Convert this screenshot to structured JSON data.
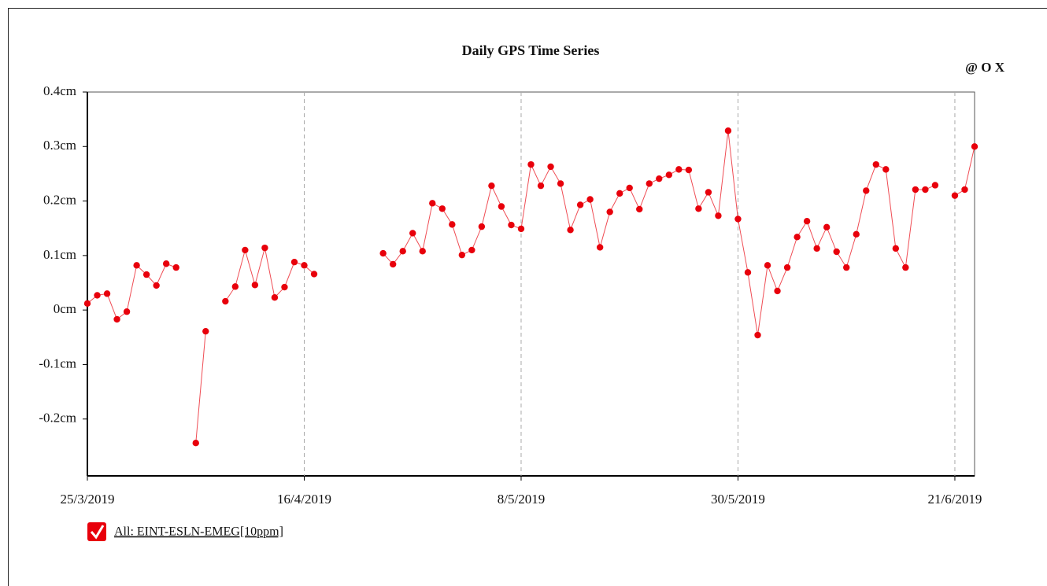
{
  "chart_data": {
    "type": "line",
    "title": "Daily GPS Time Series",
    "x": [
      "2019-03-25",
      "2019-03-26",
      "2019-03-27",
      "2019-03-28",
      "2019-03-29",
      "2019-03-30",
      "2019-03-31",
      "2019-04-01",
      "2019-04-02",
      "2019-04-03",
      "2019-04-04",
      "2019-04-05",
      "2019-04-06",
      "2019-04-07",
      "2019-04-08",
      "2019-04-09",
      "2019-04-10",
      "2019-04-11",
      "2019-04-12",
      "2019-04-13",
      "2019-04-14",
      "2019-04-15",
      "2019-04-16",
      "2019-04-17",
      "2019-04-18",
      "2019-04-24",
      "2019-04-25",
      "2019-04-26",
      "2019-04-27",
      "2019-04-28",
      "2019-04-29",
      "2019-04-30",
      "2019-05-01",
      "2019-05-02",
      "2019-05-03",
      "2019-05-04",
      "2019-05-05",
      "2019-05-06",
      "2019-05-07",
      "2019-05-08",
      "2019-05-09",
      "2019-05-10",
      "2019-05-11",
      "2019-05-12",
      "2019-05-13",
      "2019-05-14",
      "2019-05-15",
      "2019-05-16",
      "2019-05-17",
      "2019-05-18",
      "2019-05-19",
      "2019-05-20",
      "2019-05-21",
      "2019-05-22",
      "2019-05-23",
      "2019-05-24",
      "2019-05-25",
      "2019-05-26",
      "2019-05-27",
      "2019-05-28",
      "2019-05-29",
      "2019-05-30",
      "2019-05-31",
      "2019-06-01",
      "2019-06-02",
      "2019-06-03",
      "2019-06-04",
      "2019-06-05",
      "2019-06-06",
      "2019-06-07",
      "2019-06-08",
      "2019-06-09",
      "2019-06-10",
      "2019-06-11",
      "2019-06-12",
      "2019-06-13",
      "2019-06-14",
      "2019-06-15",
      "2019-06-16",
      "2019-06-17",
      "2019-06-18",
      "2019-06-19",
      "2019-06-20",
      "2019-06-21",
      "2019-06-22",
      "2019-06-23"
    ],
    "series": [
      {
        "name": "All: EINT-ESLN-EMEG[10ppm]",
        "color": "#e8000b",
        "values": [
          0.012,
          0.027,
          0.03,
          -0.017,
          -0.003,
          0.082,
          0.065,
          0.045,
          0.085,
          0.078,
          null,
          -0.244,
          -0.039,
          null,
          0.016,
          0.043,
          0.11,
          0.046,
          0.114,
          0.023,
          0.042,
          0.088,
          0.082,
          0.066,
          null,
          0.104,
          0.084,
          0.108,
          0.141,
          0.108,
          0.196,
          0.186,
          0.157,
          0.101,
          0.11,
          0.153,
          0.228,
          0.19,
          0.156,
          0.149,
          0.267,
          0.228,
          0.263,
          0.232,
          0.147,
          0.193,
          0.203,
          0.115,
          0.18,
          0.214,
          0.224,
          0.185,
          0.232,
          0.241,
          0.248,
          0.258,
          0.257,
          0.186,
          0.216,
          0.173,
          0.329,
          0.167,
          0.069,
          -0.046,
          0.082,
          0.035,
          0.078,
          0.134,
          0.163,
          0.113,
          0.152,
          0.107,
          0.078,
          0.139,
          0.219,
          0.267,
          0.258,
          0.113,
          0.078,
          0.221,
          0.221,
          0.229,
          null,
          0.21,
          0.221,
          0.3
        ]
      }
    ],
    "xlim": [
      "2019-03-25",
      "2019-06-23"
    ],
    "xticks": [
      {
        "value": "2019-03-25",
        "label": "25/3/2019"
      },
      {
        "value": "2019-04-16",
        "label": "16/4/2019"
      },
      {
        "value": "2019-05-08",
        "label": "8/5/2019"
      },
      {
        "value": "2019-05-30",
        "label": "30/5/2019"
      },
      {
        "value": "2019-06-21",
        "label": "21/6/2019"
      }
    ],
    "ylim": [
      -0.3,
      0.4
    ],
    "yticks": [
      {
        "value": -0.2,
        "label": "-0.2cm"
      },
      {
        "value": -0.1,
        "label": "-0.1cm"
      },
      {
        "value": 0,
        "label": "0cm"
      },
      {
        "value": 0.1,
        "label": "0.1cm"
      },
      {
        "value": 0.2,
        "label": "0.2cm"
      },
      {
        "value": 0.3,
        "label": "0.3cm"
      },
      {
        "value": 0.4,
        "label": "0.4cm"
      }
    ],
    "grid_x": true
  },
  "toolbar": "@ O X"
}
